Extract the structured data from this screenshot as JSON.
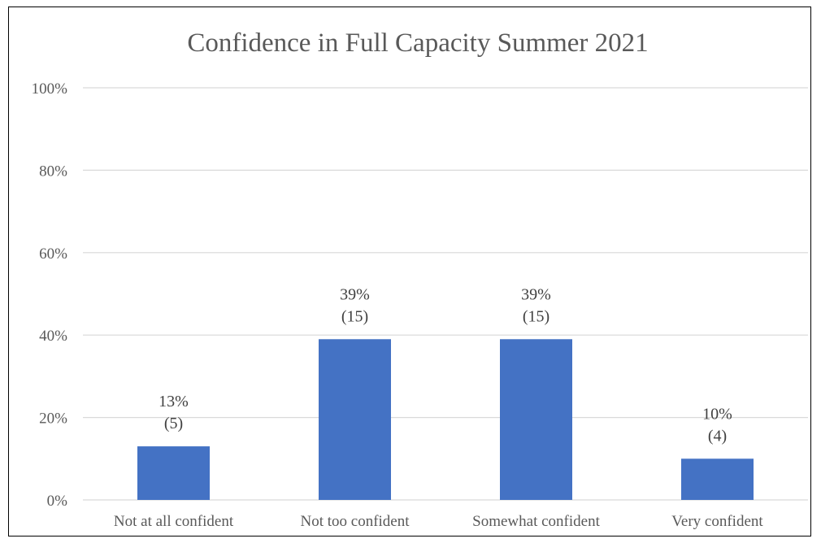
{
  "chart_data": {
    "type": "bar",
    "title": "Confidence in Full Capacity Summer 2021",
    "categories": [
      "Not at all confident",
      "Not too confident",
      "Somewhat confident",
      "Very confident"
    ],
    "values": [
      13,
      39,
      39,
      10
    ],
    "counts": [
      5,
      15,
      15,
      4
    ],
    "data_labels": [
      {
        "pct": "13%",
        "count": "(5)"
      },
      {
        "pct": "39%",
        "count": "(15)"
      },
      {
        "pct": "39%",
        "count": "(15)"
      },
      {
        "pct": "10%",
        "count": "(4)"
      }
    ],
    "y_ticks": [
      "0%",
      "20%",
      "40%",
      "60%",
      "80%",
      "100%"
    ],
    "ylim": [
      0,
      100
    ],
    "xlabel": "",
    "ylabel": "",
    "grid": true,
    "legend": "none",
    "bar_color": "#4472C4",
    "grid_color": "#D9D9D9"
  }
}
